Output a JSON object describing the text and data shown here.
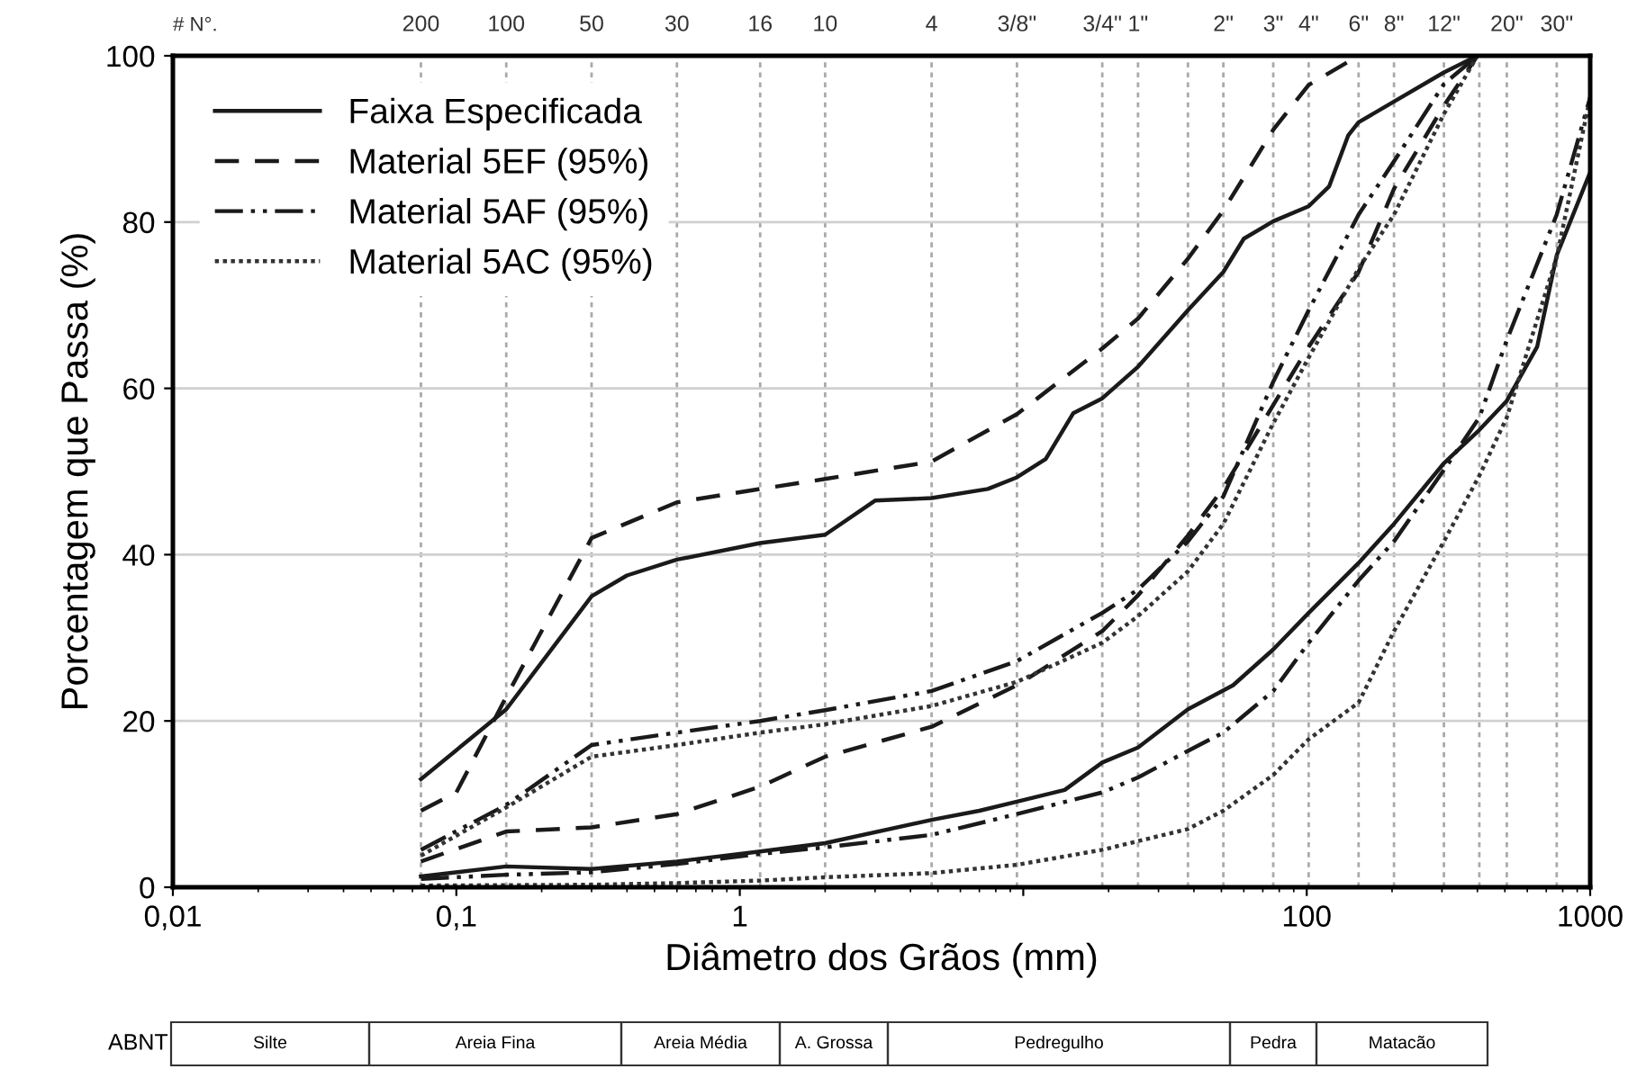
{
  "chart_data": {
    "type": "line",
    "xlabel": "Diâmetro dos Grãos (mm)",
    "ylabel": "Porcentagem que Passa (%)",
    "log": "x",
    "xlim": [
      0.01,
      1000
    ],
    "ylim": [
      0,
      100
    ],
    "xticks": [
      {
        "value": 0.01,
        "label": "0,01"
      },
      {
        "value": 0.1,
        "label": "0,1"
      },
      1,
      {
        "value": 10,
        "label": null
      },
      100,
      1000
    ],
    "yticks": [
      0,
      20,
      40,
      60,
      80,
      100
    ],
    "grid": "y",
    "legend": "top left",
    "ref_lines": [
      {
        "axis": "x",
        "value": 0.075,
        "color": "#aaaaaa",
        "line_style": "dotted"
      },
      {
        "axis": "x",
        "value": 0.15,
        "color": "#aaaaaa",
        "line_style": "dotted"
      },
      {
        "axis": "x",
        "value": 0.3,
        "color": "#aaaaaa",
        "line_style": "dotted"
      },
      {
        "axis": "x",
        "value": 0.6,
        "color": "#aaaaaa",
        "line_style": "dotted"
      },
      {
        "axis": "x",
        "value": 1.18,
        "color": "#aaaaaa",
        "line_style": "dotted"
      },
      {
        "axis": "x",
        "value": 2,
        "color": "#aaaaaa",
        "line_style": "dotted"
      },
      {
        "axis": "x",
        "value": 4.75,
        "color": "#aaaaaa",
        "line_style": "dotted"
      },
      {
        "axis": "x",
        "value": 9.5,
        "color": "#aaaaaa",
        "line_style": "dotted"
      },
      {
        "axis": "x",
        "value": 19,
        "color": "#aaaaaa",
        "line_style": "dotted"
      },
      {
        "axis": "x",
        "value": 25.4,
        "color": "#aaaaaa",
        "line_style": "dotted"
      },
      {
        "axis": "x",
        "value": 38.1,
        "color": "#aaaaaa",
        "line_style": "dotted"
      },
      {
        "axis": "x",
        "value": 50.8,
        "color": "#aaaaaa",
        "line_style": "dotted"
      },
      {
        "axis": "x",
        "value": 76.2,
        "color": "#aaaaaa",
        "line_style": "dotted"
      },
      {
        "axis": "x",
        "value": 101.6,
        "color": "#aaaaaa",
        "line_style": "dotted"
      },
      {
        "axis": "x",
        "value": 152.4,
        "color": "#aaaaaa",
        "line_style": "dotted"
      },
      {
        "axis": "x",
        "value": 203.2,
        "color": "#aaaaaa",
        "line_style": "dotted"
      },
      {
        "axis": "x",
        "value": 304.8,
        "color": "#aaaaaa",
        "line_style": "dotted"
      },
      {
        "axis": "x",
        "value": 406.4,
        "color": "#aaaaaa",
        "line_style": "dotted"
      },
      {
        "axis": "x",
        "value": 508,
        "color": "#aaaaaa",
        "line_style": "dotted"
      },
      {
        "axis": "x",
        "value": 762,
        "color": "#aaaaaa",
        "line_style": "dotted"
      }
    ],
    "series": [
      {
        "name": "Faixa Especificada",
        "color": "#1a1a1a",
        "line_style": "solid",
        "x": [
          0.075,
          0.15,
          0.3,
          0.4,
          0.6,
          1.18,
          2,
          3,
          4.75,
          7.5,
          9.5,
          12,
          15,
          19,
          25.4,
          38.1,
          50.8,
          60,
          76.2,
          101.6,
          120,
          140,
          152.4,
          203.2,
          304.8,
          400
        ],
        "values": [
          13,
          21.4,
          35,
          37.5,
          39.4,
          41.4,
          42.4,
          46.5,
          46.8,
          47.9,
          49.3,
          51.5,
          57,
          58.8,
          62.6,
          69.4,
          74,
          78,
          80.1,
          81.9,
          84.3,
          90.4,
          92,
          94.5,
          98,
          100
        ]
      },
      {
        "color": "#1a1a1a",
        "line_style": "solid",
        "x": [
          0.075,
          0.15,
          0.3,
          0.6,
          1.18,
          2,
          4.75,
          7,
          9.5,
          14,
          19,
          25.4,
          38.1,
          55,
          76.2,
          101.6,
          152.4,
          203.2,
          304.8,
          406.4,
          508,
          650,
          762,
          1000
        ],
        "values": [
          1.3,
          2.5,
          2.2,
          3.1,
          4.3,
          5.3,
          8.1,
          9.2,
          10.3,
          11.7,
          15,
          16.8,
          21.4,
          24.3,
          28.6,
          33,
          39,
          43.7,
          51,
          55,
          58.5,
          65,
          76,
          86
        ]
      },
      {
        "name": "Material 5EF (95%)",
        "color": "#1a1a1a",
        "line_style": "dashed",
        "x": [
          0.075,
          0.1,
          0.15,
          0.3,
          0.6,
          1.18,
          2,
          4.75,
          9.5,
          19,
          25.4,
          38.1,
          50.8,
          76.2,
          101.6,
          152.4
        ],
        "values": [
          9.2,
          11.4,
          22.9,
          42,
          46.3,
          47.9,
          49.1,
          51.2,
          56.9,
          64.8,
          68.4,
          75.6,
          81.4,
          91.1,
          96.5,
          100
        ]
      },
      {
        "color": "#1a1a1a",
        "line_style": "dashed",
        "x": [
          0.075,
          0.15,
          0.3,
          0.6,
          1.18,
          2,
          4.75,
          9.5,
          19,
          25.4,
          38.1,
          50.8,
          76.2,
          101.6,
          152.4,
          203.2,
          304.8,
          400
        ],
        "values": [
          3.1,
          6.7,
          7.2,
          8.8,
          12.1,
          15.7,
          19.3,
          24.3,
          30.8,
          35.1,
          42.3,
          48,
          58,
          65,
          74,
          84,
          94,
          100
        ]
      },
      {
        "name": "Material 5AF (95%)",
        "color": "#1a1a1a",
        "line_style": "dashdot",
        "x": [
          0.075,
          0.15,
          0.3,
          0.6,
          1.18,
          2,
          4.75,
          9.5,
          19,
          25.4,
          38.1,
          50.8,
          76.2,
          101.6,
          152.4,
          203.2,
          304.8,
          400
        ],
        "values": [
          4.5,
          9.9,
          17.1,
          18.6,
          20,
          21.3,
          23.6,
          27.2,
          33,
          35.8,
          41.6,
          47,
          60.8,
          69.4,
          80.9,
          87.3,
          96.6,
          100
        ]
      },
      {
        "color": "#1a1a1a",
        "line_style": "dashdot",
        "x": [
          0.075,
          0.15,
          0.3,
          0.6,
          1.18,
          2,
          4.75,
          9.5,
          19,
          25.4,
          38.1,
          50.8,
          76.2,
          101.6,
          152.4,
          203.2,
          304.8,
          406.4,
          508,
          762,
          1000
        ],
        "values": [
          1,
          1.5,
          1.8,
          2.8,
          4,
          4.8,
          6.3,
          8.8,
          11.4,
          13.2,
          16.4,
          18.6,
          23.6,
          29.4,
          36.9,
          41.6,
          50.2,
          56.5,
          65.8,
          80.9,
          95
        ]
      },
      {
        "name": "Material 5AC (95%)",
        "color": "#333333",
        "line_style": "dotted",
        "x": [
          0.075,
          0.15,
          0.3,
          0.6,
          1.18,
          2,
          4.75,
          9.5,
          19,
          25.4,
          38.1,
          50.8,
          76.2,
          101.6,
          152.4,
          203.2,
          304.8,
          400
        ],
        "values": [
          3.8,
          9.6,
          15.7,
          17.1,
          18.6,
          19.6,
          21.8,
          24.7,
          29.4,
          32.6,
          38,
          43.7,
          55.8,
          63.7,
          74.4,
          80.9,
          93,
          100
        ]
      },
      {
        "color": "#333333",
        "line_style": "dotted",
        "x": [
          0.075,
          0.3,
          0.6,
          1.18,
          2,
          4.75,
          9.5,
          19,
          38.1,
          50.8,
          76.2,
          101.6,
          152.4,
          203.2,
          304.8,
          406.4,
          508,
          762,
          1000
        ],
        "values": [
          0.2,
          0.3,
          0.5,
          0.8,
          1.2,
          1.7,
          2.7,
          4.5,
          7,
          9.2,
          13.5,
          17.8,
          22.2,
          30.8,
          41.6,
          49.5,
          56.5,
          75.8,
          95
        ]
      }
    ],
    "annotations": [
      "# N°.",
      {
        "text": "200",
        "x": 0.075,
        "y": 100
      },
      {
        "text": "100",
        "x": 0.15,
        "y": 100
      },
      {
        "text": "50",
        "x": 0.3,
        "y": 100
      },
      {
        "text": "30",
        "x": 0.6,
        "y": 100
      },
      {
        "text": "16",
        "x": 1.18,
        "y": 100
      },
      {
        "text": "10",
        "x": 2,
        "y": 100
      },
      {
        "text": "4",
        "x": 4.75,
        "y": 100
      },
      {
        "text": "3/8\"",
        "x": 9.5,
        "y": 100
      },
      {
        "text": "3/4\"",
        "x": 19,
        "y": 100
      },
      {
        "text": "1\"",
        "x": 25.4,
        "y": 100
      },
      {
        "text": "2\"",
        "x": 50.8,
        "y": 100
      },
      {
        "text": "3\"",
        "x": 76.2,
        "y": 100
      },
      {
        "text": "4\"",
        "x": 101.6,
        "y": 100
      },
      {
        "text": "6\"",
        "x": 152.4,
        "y": 100
      },
      {
        "text": "8\"",
        "x": 203.2,
        "y": 100
      },
      {
        "text": "12\"",
        "x": 304.8,
        "y": 100
      },
      {
        "text": "20\"",
        "x": 508,
        "y": 100
      },
      {
        "text": "30\"",
        "x": 762,
        "y": 100
      },
      "ABNT",
      "Silte",
      "Areia Fina",
      "Areia Média",
      "A. Grossa",
      "Pedregulho",
      "Pedra",
      "Matacão"
    ]
  }
}
